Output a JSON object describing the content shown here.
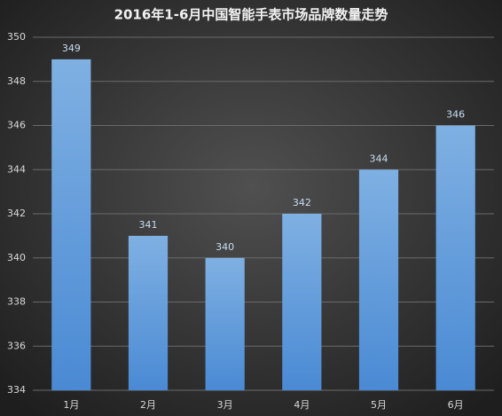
{
  "chart_data": {
    "type": "bar",
    "title": "2016年1-6月中国智能手表市场品牌数量走势",
    "categories": [
      "1月",
      "2月",
      "3月",
      "4月",
      "5月",
      "6月"
    ],
    "values": [
      349,
      341,
      340,
      342,
      344,
      346
    ],
    "color": "#5b9bd5",
    "ylim": [
      334,
      350
    ],
    "yticks": [
      334,
      336,
      338,
      340,
      342,
      344,
      346,
      348,
      350
    ],
    "grid": true
  }
}
